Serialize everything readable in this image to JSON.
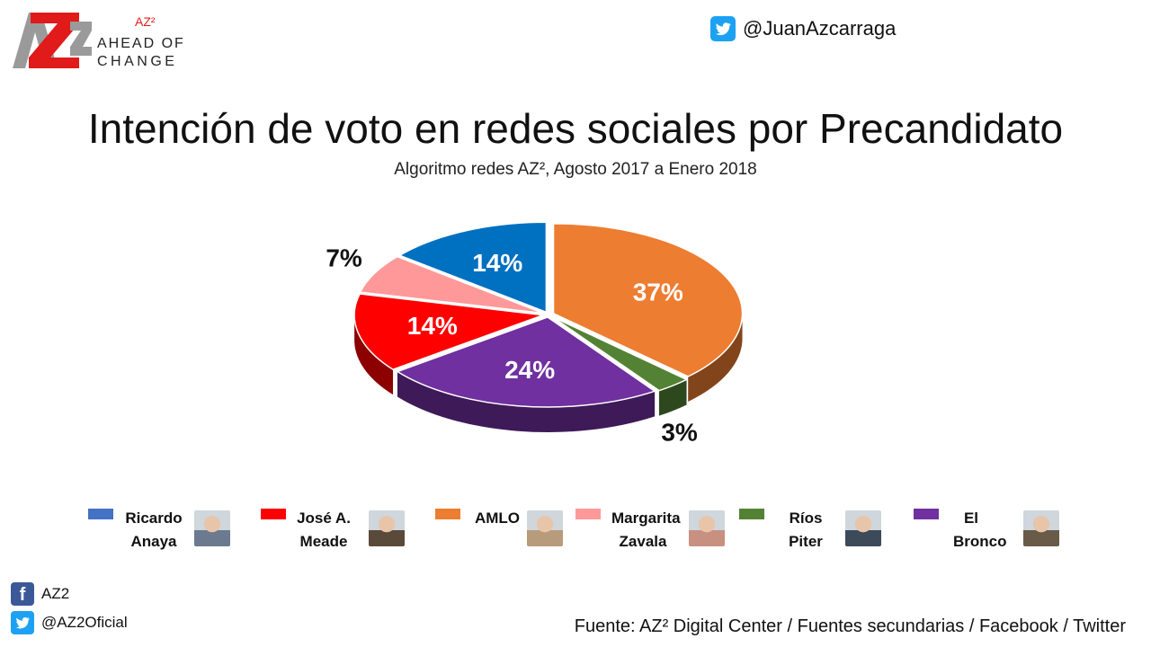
{
  "header": {
    "logo_text": "AZ2",
    "logo_sup": "AZ²",
    "logo_line1": "AHEAD OF",
    "logo_line2": "CHANGE",
    "twitter_handle": "@JuanAzcarraga"
  },
  "chart_data": {
    "type": "pie",
    "title": "Intención de voto en redes sociales por Precandidato",
    "subtitle": "Algoritmo redes AZ², Agosto 2017 a Enero 2018",
    "categories": [
      "AMLO",
      "Ríos Piter",
      "El Bronco",
      "José A. Meade",
      "Margarita Zavala",
      "Ricardo Anaya"
    ],
    "values": [
      37,
      3,
      24,
      14,
      7,
      14
    ],
    "labels": [
      "37%",
      "3%",
      "24%",
      "14%",
      "7%",
      "14%"
    ],
    "colors": [
      "#ed7d31",
      "#548235",
      "#7030a0",
      "#ff0000",
      "#ff9999",
      "#0070c0"
    ],
    "legend_position": "bottom"
  },
  "legend": [
    {
      "name": "Ricardo\nAnaya",
      "color": "#4472c4",
      "photo_icon": "ricardo-anaya-photo"
    },
    {
      "name": "José A.\nMeade",
      "color": "#ff0000",
      "photo_icon": "jose-meade-photo"
    },
    {
      "name": "AMLO",
      "color": "#ed7d31",
      "photo_icon": "amlo-photo"
    },
    {
      "name": "Margarita\nZavala",
      "color": "#ff9999",
      "photo_icon": "margarita-zavala-photo"
    },
    {
      "name": "Ríos\nPiter",
      "color": "#548235",
      "photo_icon": "rios-piter-photo"
    },
    {
      "name": "El\nBronco",
      "color": "#7030a0",
      "photo_icon": "el-bronco-photo"
    }
  ],
  "footer": {
    "facebook": "AZ2",
    "twitter": "@AZ2Oficial",
    "source": "Fuente: AZ² Digital Center / Fuentes secundarias / Facebook / Twitter"
  }
}
